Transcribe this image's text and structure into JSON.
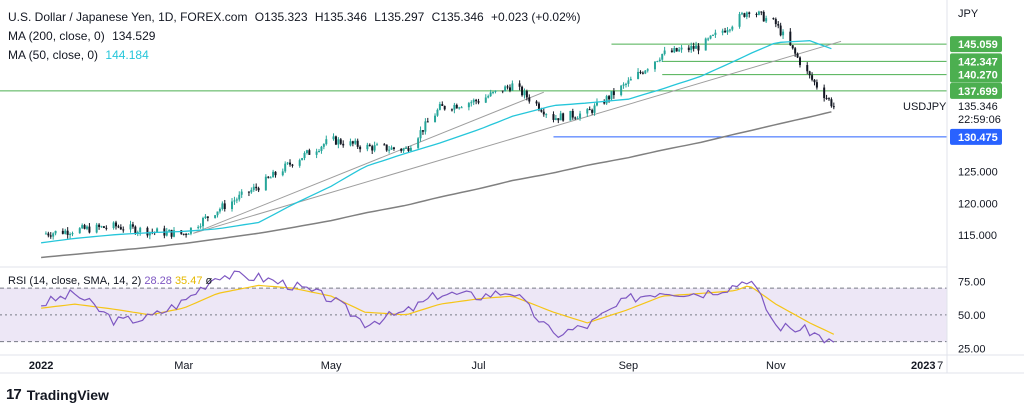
{
  "header": {
    "title": "U.S. Dollar / Japanese Yen, 1D, FOREX.com",
    "ohlc": {
      "o": "O135.323",
      "h": "H135.346",
      "l": "L135.297",
      "c": "C135.346",
      "change": "+0.023 (+0.02%)"
    },
    "ma200": {
      "label": "MA (200, close, 0)",
      "value": "134.529"
    },
    "ma50": {
      "label": "MA (50, close, 0)",
      "value": "144.184"
    }
  },
  "rsi_legend": {
    "label": "RSI (14, close, SMA, 14, 2)",
    "rsi": "28.28",
    "sma": "35.47",
    "extra": "ø"
  },
  "footer": {
    "brand": "TradingView"
  },
  "colors": {
    "up": "#26a69a",
    "down": "#131722",
    "ma50": "#26c6da",
    "ma200": "#808080",
    "level_green": "#4caf50",
    "level_blue": "#2962ff",
    "rsi": "#7e57c2",
    "rsi_sma": "#f5c518"
  },
  "chart_data": [
    {
      "type": "line",
      "title": "U.S. Dollar / Japanese Yen, 1D, FOREX.com",
      "y_axis_label": "JPY",
      "symbol": "USDJPY",
      "last_price": "135.346",
      "countdown": "22:59:06",
      "ylim": [
        110,
        152
      ],
      "y_ticks": [
        "115.000",
        "120.000",
        "125.000",
        "130.000"
      ],
      "x_ticks": [
        "2022",
        "Mar",
        "May",
        "Jul",
        "Sep",
        "Nov",
        "2023",
        "7"
      ],
      "levels": [
        {
          "label": "145.059",
          "value": 145.059,
          "color": "#4caf50"
        },
        {
          "label": "142.347",
          "value": 142.347,
          "color": "#4caf50"
        },
        {
          "label": "140.270",
          "value": 140.27,
          "color": "#4caf50"
        },
        {
          "label": "137.699",
          "value": 137.699,
          "color": "#4caf50"
        },
        {
          "label": "130.475",
          "value": 130.475,
          "color": "#2962ff"
        }
      ],
      "x": [
        "2022-01-01",
        "2022-01-15",
        "2022-02-01",
        "2022-02-15",
        "2022-03-01",
        "2022-03-15",
        "2022-04-01",
        "2022-04-15",
        "2022-05-01",
        "2022-05-15",
        "2022-06-01",
        "2022-06-15",
        "2022-07-01",
        "2022-07-15",
        "2022-08-01",
        "2022-08-15",
        "2022-09-01",
        "2022-09-15",
        "2022-10-01",
        "2022-10-15",
        "2022-10-21",
        "2022-11-01",
        "2022-11-15",
        "2022-11-25"
      ],
      "series": [
        {
          "name": "USDJPY",
          "values": [
            115.2,
            115.8,
            116.4,
            115.6,
            115.2,
            119.0,
            122.7,
            126.5,
            130.0,
            128.9,
            128.5,
            135.0,
            136.2,
            138.6,
            133.5,
            134.2,
            139.0,
            143.5,
            144.7,
            148.6,
            150.5,
            148.2,
            139.9,
            135.3
          ]
        },
        {
          "name": "MA (200, close, 0)",
          "values": [
            111.5,
            112.0,
            112.6,
            113.1,
            113.7,
            114.4,
            115.3,
            116.2,
            117.3,
            118.5,
            119.7,
            121.0,
            122.3,
            123.6,
            124.8,
            126.0,
            127.2,
            128.4,
            129.6,
            130.9,
            131.4,
            132.4,
            133.6,
            134.5
          ]
        },
        {
          "name": "MA (50, close, 0)",
          "values": [
            113.8,
            114.5,
            115.1,
            115.4,
            115.6,
            116.0,
            117.0,
            119.8,
            122.7,
            125.8,
            127.9,
            129.5,
            131.6,
            133.7,
            135.4,
            135.8,
            136.4,
            138.0,
            140.0,
            142.4,
            143.5,
            145.3,
            145.6,
            144.2
          ]
        }
      ]
    },
    {
      "type": "line",
      "title": "RSI (14, close, SMA, 14, 2)",
      "ylim": [
        20,
        85
      ],
      "y_ticks": [
        "75.00",
        "50.00",
        "25.00"
      ],
      "bands": [
        70,
        50,
        30
      ],
      "x": [
        "2022-01-01",
        "2022-01-15",
        "2022-02-01",
        "2022-02-15",
        "2022-03-01",
        "2022-03-15",
        "2022-04-01",
        "2022-04-15",
        "2022-05-01",
        "2022-05-15",
        "2022-06-01",
        "2022-06-15",
        "2022-07-01",
        "2022-07-15",
        "2022-08-01",
        "2022-08-15",
        "2022-09-01",
        "2022-09-15",
        "2022-10-01",
        "2022-10-15",
        "2022-10-21",
        "2022-11-01",
        "2022-11-15",
        "2022-11-25"
      ],
      "series": [
        {
          "name": "RSI",
          "values": [
            58,
            66,
            45,
            48,
            60,
            80,
            78,
            72,
            62,
            44,
            52,
            66,
            64,
            68,
            35,
            42,
            62,
            68,
            66,
            72,
            78,
            42,
            38,
            28.28
          ]
        },
        {
          "name": "SMA",
          "values": [
            55,
            58,
            54,
            50,
            55,
            66,
            72,
            70,
            64,
            52,
            50,
            58,
            62,
            64,
            52,
            44,
            54,
            64,
            66,
            68,
            72,
            58,
            44,
            35.47
          ]
        }
      ]
    }
  ]
}
